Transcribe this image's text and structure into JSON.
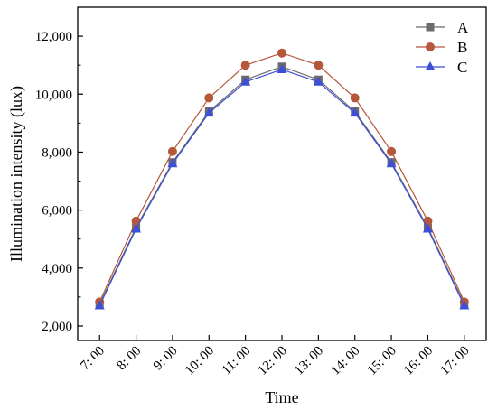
{
  "chart_data": {
    "type": "line",
    "title": "",
    "xlabel": "Time",
    "ylabel": "Illumination intensity (lux)",
    "categories": [
      "7: 00",
      "8: 00",
      "9: 00",
      "10: 00",
      "11: 00",
      "12: 00",
      "13: 00",
      "14: 00",
      "15: 00",
      "16: 00",
      "17: 00"
    ],
    "yticks": [
      "2,000",
      "4,000",
      "6,000",
      "8,000",
      "10,000",
      "12,000"
    ],
    "ytick_values": [
      2000,
      4000,
      6000,
      8000,
      10000,
      12000
    ],
    "ylim": [
      1500,
      13000
    ],
    "legend_position": "top-right",
    "grid": false,
    "series": [
      {
        "name": "A",
        "marker": "square",
        "color": "#6b6b6b",
        "values": [
          2750,
          5400,
          7650,
          9400,
          10500,
          10950,
          10500,
          9400,
          7650,
          5400,
          2750
        ]
      },
      {
        "name": "B",
        "marker": "circle",
        "color": "#b5573b",
        "values": [
          2830,
          5620,
          8020,
          9870,
          11000,
          11420,
          11000,
          9870,
          8020,
          5620,
          2830
        ]
      },
      {
        "name": "C",
        "marker": "triangle",
        "color": "#3d4fd6",
        "values": [
          2700,
          5350,
          7600,
          9350,
          10420,
          10850,
          10420,
          9350,
          7600,
          5350,
          2700
        ]
      }
    ]
  }
}
